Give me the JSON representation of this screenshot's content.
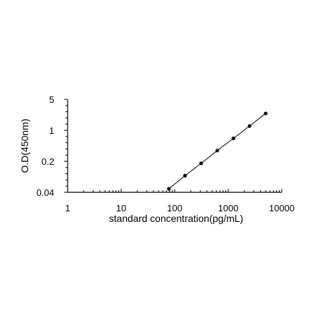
{
  "chart_data": {
    "type": "line",
    "title": "",
    "xlabel": "standard concentration(pg/mL)",
    "ylabel": "O.D(450nm)",
    "x_scale": "log",
    "y_scale": "log",
    "xlim": [
      1,
      10000
    ],
    "ylim": [
      0.04,
      5
    ],
    "x_ticks": [
      "1",
      "10",
      "100",
      "1000",
      "10000"
    ],
    "y_ticks": [
      "5",
      "1",
      "0.2",
      "0.04"
    ],
    "grid": false,
    "legend": "none",
    "series": [
      {
        "x": [
          78,
          156,
          312,
          625,
          1250,
          2500,
          5000
        ],
        "values": [
          0.048,
          0.095,
          0.18,
          0.35,
          0.66,
          1.25,
          2.4
        ]
      }
    ]
  }
}
